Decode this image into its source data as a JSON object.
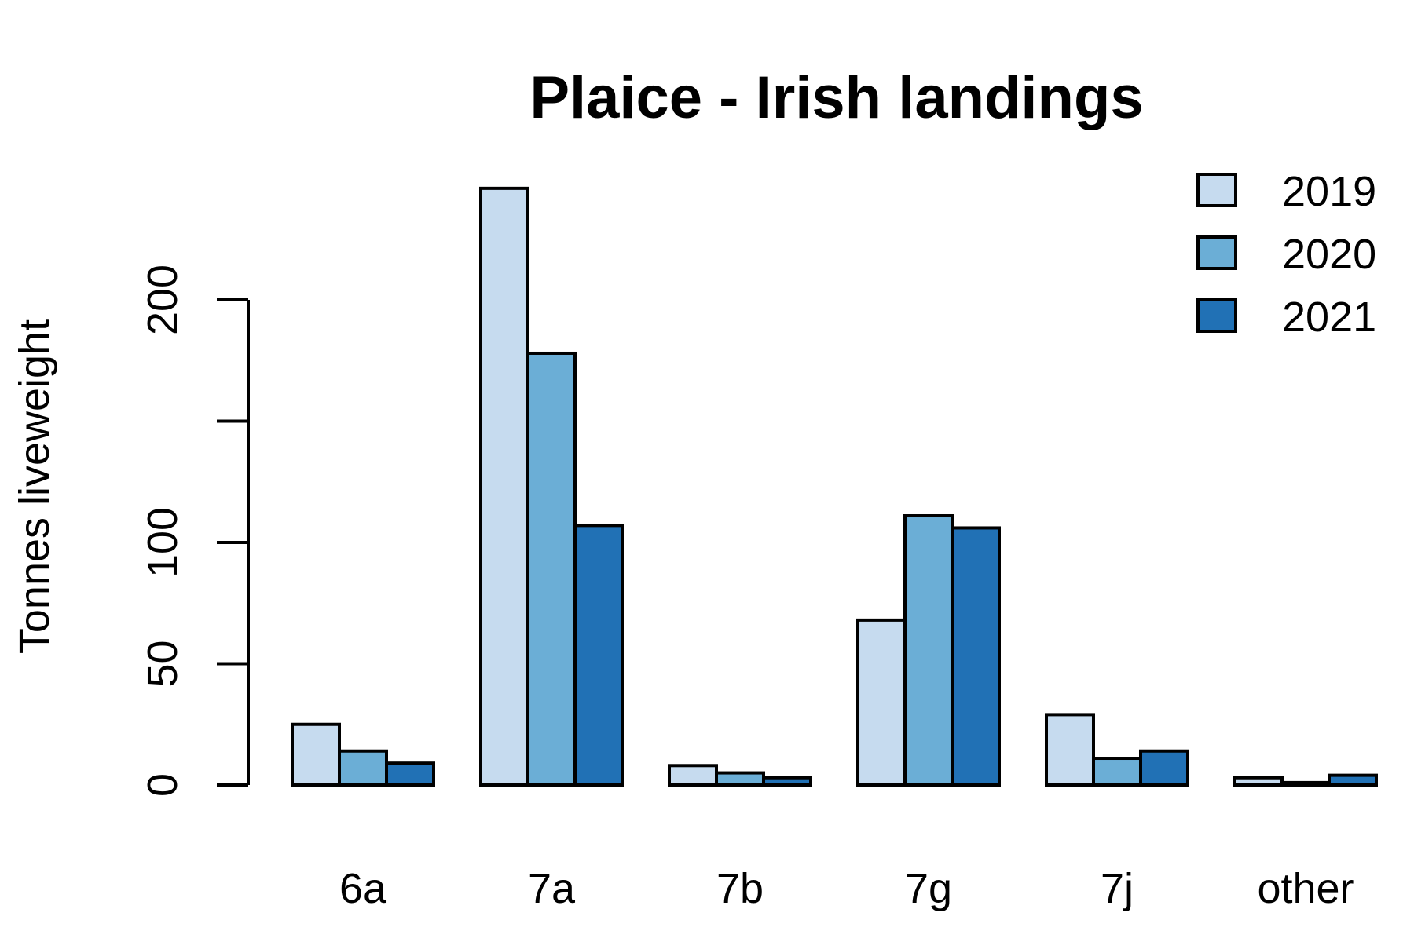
{
  "chart_data": {
    "type": "bar",
    "title": "Plaice - Irish landings",
    "xlabel": "",
    "ylabel": "Tonnes liveweight",
    "categories": [
      "6a",
      "7a",
      "7b",
      "7g",
      "7j",
      "other"
    ],
    "series": [
      {
        "name": "2019",
        "color": "#c6dbef",
        "values": [
          25,
          246,
          8,
          68,
          29,
          3
        ]
      },
      {
        "name": "2020",
        "color": "#6baed6",
        "values": [
          14,
          178,
          5,
          111,
          11,
          1
        ]
      },
      {
        "name": "2021",
        "color": "#2171b5",
        "values": [
          9,
          107,
          3,
          106,
          14,
          4
        ]
      }
    ],
    "yticks": [
      0,
      50,
      100,
      150,
      200
    ],
    "ytick_labels": [
      "0",
      "50",
      "100",
      "",
      "200"
    ],
    "ylim": [
      0,
      250
    ],
    "grid": false,
    "legend": "top-right"
  }
}
